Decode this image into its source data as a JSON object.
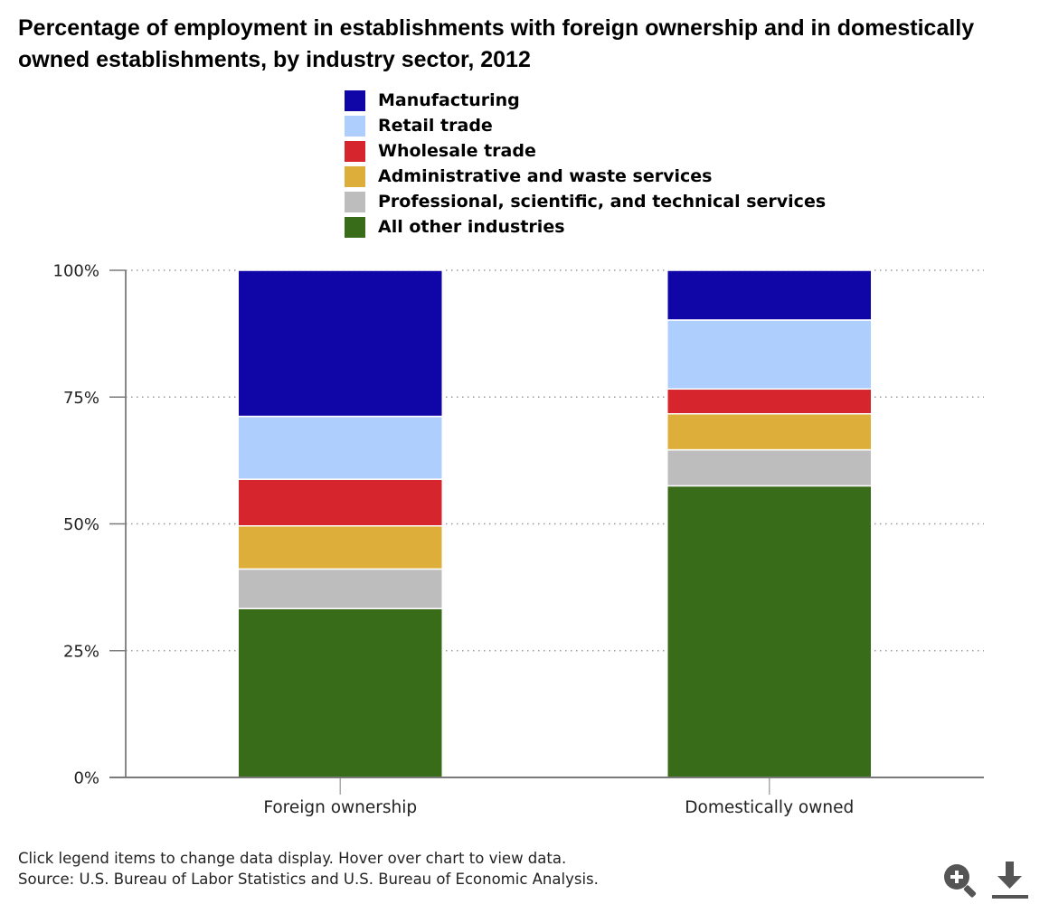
{
  "title": "Percentage of employment in establishments with foreign ownership and in domestically owned establishments, by industry sector, 2012",
  "footer": {
    "note": "Click legend items to change data display. Hover over chart to view data.",
    "source": "Source: U.S. Bureau of Labor Statistics and U.S. Bureau of Economic Analysis."
  },
  "toolbar": {
    "zoom_icon": "zoom-in-icon",
    "download_icon": "download-icon",
    "icon_color": "#555555"
  },
  "chart_data": {
    "type": "bar",
    "stacked": true,
    "stack_order": "bottom-to-top: All other industries first, Manufacturing on top",
    "categories": [
      "Foreign ownership",
      "Domestically owned"
    ],
    "series": [
      {
        "name": "Manufacturing",
        "color": "#1005a6",
        "values": [
          28.8,
          9.8
        ]
      },
      {
        "name": "Retail trade",
        "color": "#aecffd",
        "values": [
          12.4,
          13.6
        ]
      },
      {
        "name": "Wholesale trade",
        "color": "#d7252d",
        "values": [
          9.2,
          4.9
        ]
      },
      {
        "name": "Administrative and waste services",
        "color": "#ddaf3a",
        "values": [
          8.5,
          7.1
        ]
      },
      {
        "name": "Professional, scientific, and technical services",
        "color": "#bdbdbd",
        "values": [
          7.8,
          7.1
        ]
      },
      {
        "name": "All other industries",
        "color": "#386c19",
        "values": [
          33.3,
          57.5
        ]
      }
    ],
    "ylim": [
      0,
      100
    ],
    "yticks": [
      "0%",
      "25%",
      "50%",
      "75%",
      "100%"
    ],
    "ytick_values": [
      0,
      25,
      50,
      75,
      100
    ],
    "xlabel": "",
    "ylabel": "",
    "grid": true,
    "legend_position": "top"
  }
}
